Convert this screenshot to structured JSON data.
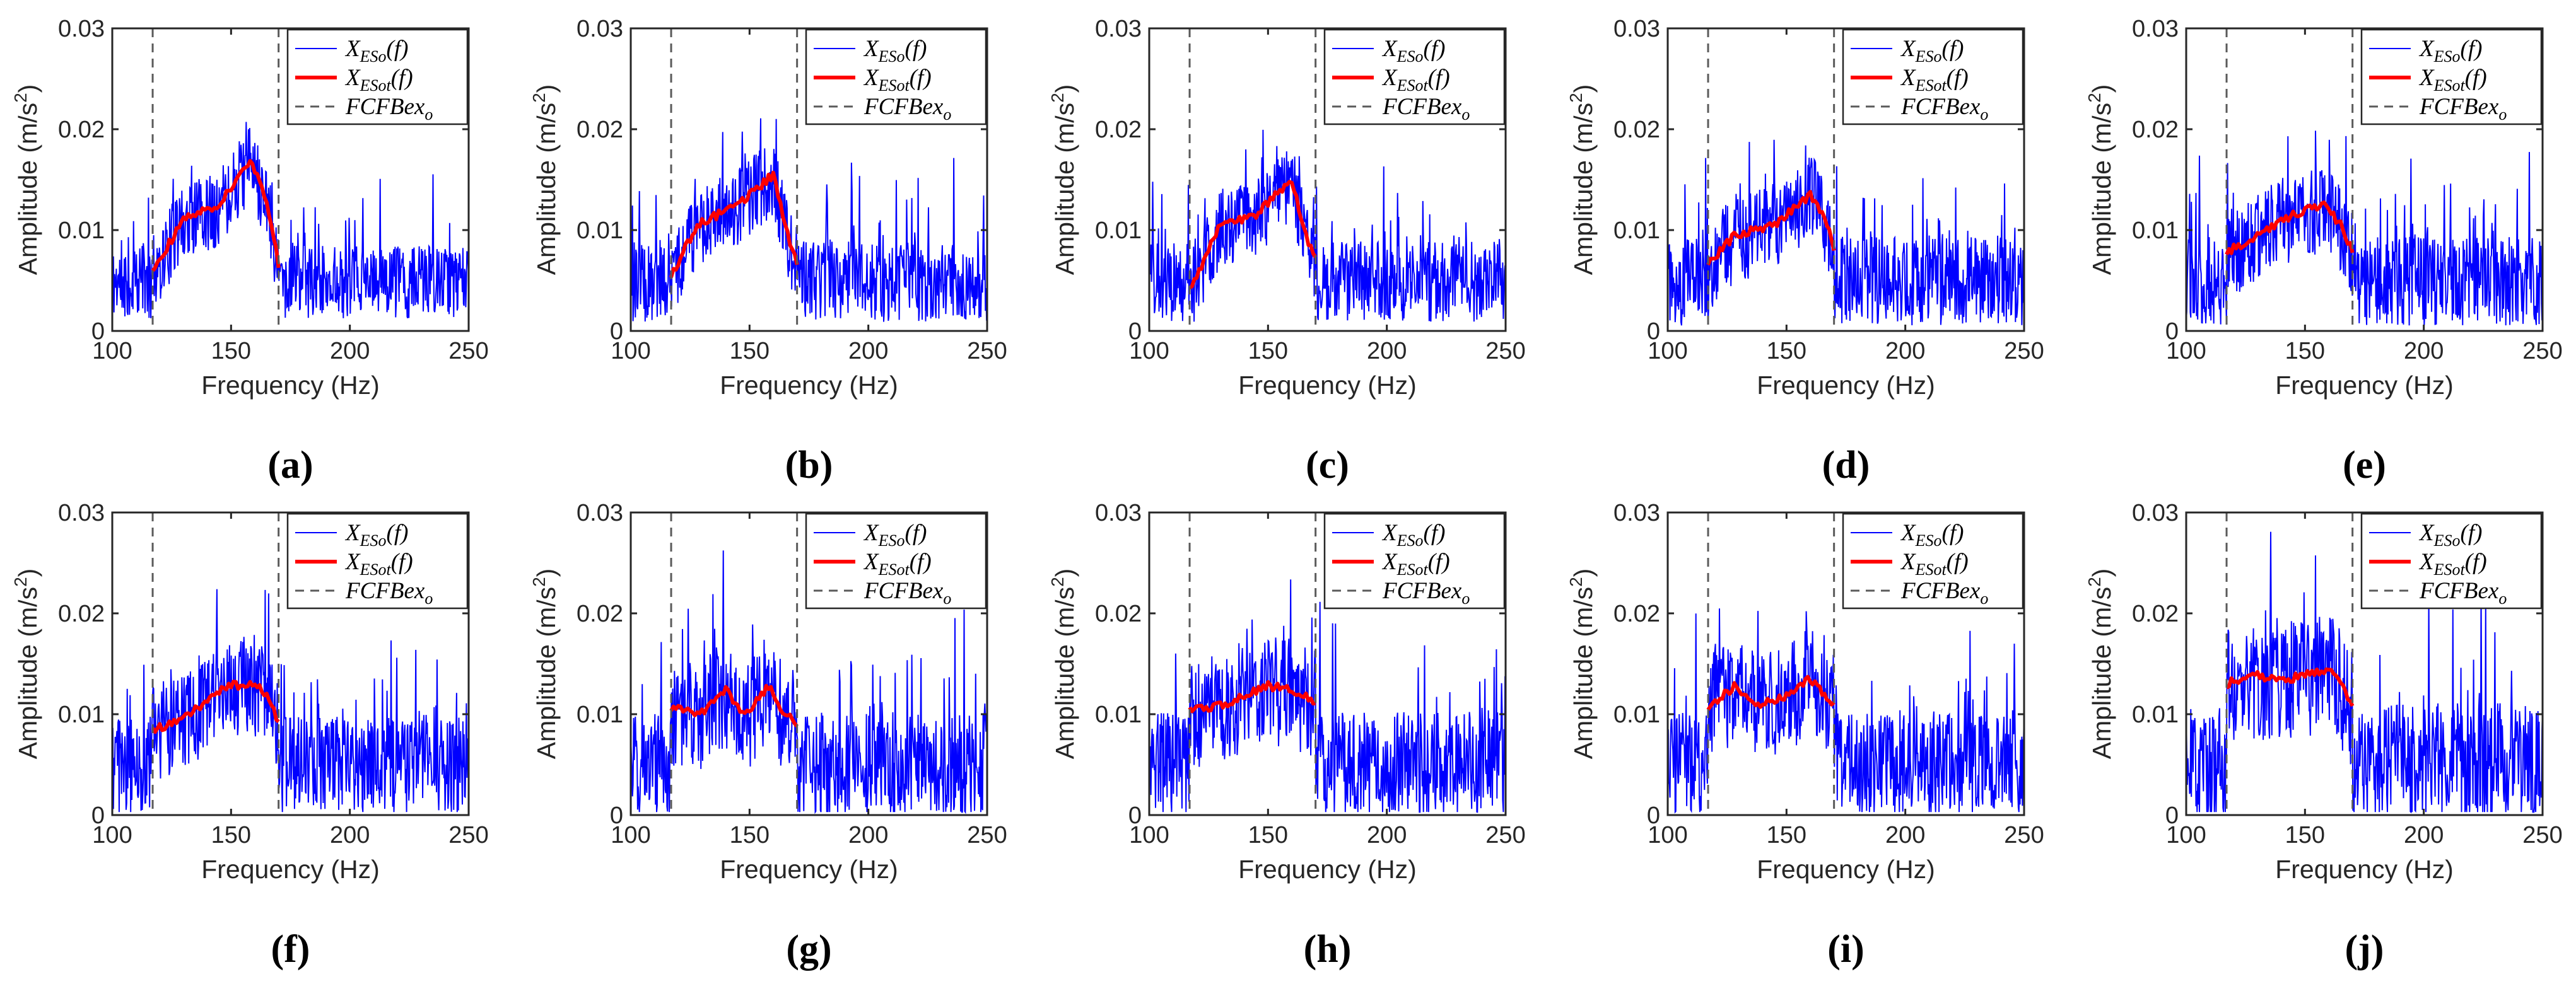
{
  "legend_entries": [
    {
      "base": "X",
      "sub": "ESo",
      "suffix": "(f)",
      "color": "#0000ff",
      "dash": "none",
      "stroke": 2
    },
    {
      "base": "X",
      "sub": "ESot",
      "suffix": "(f)",
      "color": "#ff0000",
      "dash": "none",
      "stroke": 6
    },
    {
      "base": "FCFBex",
      "sub": "o",
      "suffix": "",
      "color": "#5a5a5a",
      "dash": "14,10",
      "stroke": 3
    }
  ],
  "chart_data": [
    {
      "type": "line",
      "label": "(a)",
      "xlabel": "Frequency (Hz)",
      "ylabel": "Amplitude (m/s",
      "ylabel_sup": "2",
      "ylabel_end": ")",
      "xlim": [
        100,
        250
      ],
      "ylim": [
        0,
        0.03
      ],
      "xticks": [
        "100",
        "150",
        "200",
        "250"
      ],
      "yticks": [
        "0",
        "0.01",
        "0.02",
        "0.03"
      ],
      "band": [
        117,
        170
      ],
      "noise_seed": 11,
      "noise_out": 0.0045,
      "noise_in": 0.0035,
      "envelope": [
        [
          117,
          0.006
        ],
        [
          130,
          0.011
        ],
        [
          145,
          0.0125
        ],
        [
          158,
          0.017
        ],
        [
          165,
          0.013
        ],
        [
          170,
          0.0065
        ]
      ]
    },
    {
      "type": "line",
      "label": "(b)",
      "xlabel": "Frequency (Hz)",
      "ylabel": "Amplitude (m/s",
      "ylabel_sup": "2",
      "ylabel_end": ")",
      "xlim": [
        100,
        250
      ],
      "ylim": [
        0,
        0.03
      ],
      "xticks": [
        "100",
        "150",
        "200",
        "250"
      ],
      "yticks": [
        "0",
        "0.01",
        "0.02",
        "0.03"
      ],
      "band": [
        117,
        170
      ],
      "noise_seed": 23,
      "noise_out": 0.005,
      "noise_in": 0.0035,
      "envelope": [
        [
          117,
          0.0055
        ],
        [
          128,
          0.0105
        ],
        [
          145,
          0.0125
        ],
        [
          160,
          0.0155
        ],
        [
          166,
          0.0095
        ],
        [
          170,
          0.0065
        ]
      ]
    },
    {
      "type": "line",
      "label": "(c)",
      "xlabel": "Frequency (Hz)",
      "ylabel": "Amplitude (m/s",
      "ylabel_sup": "2",
      "ylabel_end": ")",
      "xlim": [
        100,
        250
      ],
      "ylim": [
        0,
        0.03
      ],
      "xticks": [
        "100",
        "150",
        "200",
        "250"
      ],
      "yticks": [
        "0",
        "0.01",
        "0.02",
        "0.03"
      ],
      "band": [
        117,
        170
      ],
      "noise_seed": 37,
      "noise_out": 0.005,
      "noise_in": 0.0035,
      "envelope": [
        [
          117,
          0.004
        ],
        [
          130,
          0.0105
        ],
        [
          145,
          0.0115
        ],
        [
          160,
          0.015
        ],
        [
          166,
          0.0095
        ],
        [
          170,
          0.007
        ]
      ]
    },
    {
      "type": "line",
      "label": "(d)",
      "xlabel": "Frequency (Hz)",
      "ylabel": "Amplitude (m/s",
      "ylabel_sup": "2",
      "ylabel_end": ")",
      "xlim": [
        100,
        250
      ],
      "ylim": [
        0,
        0.03
      ],
      "xticks": [
        "100",
        "150",
        "200",
        "250"
      ],
      "yticks": [
        "0",
        "0.01",
        "0.02",
        "0.03"
      ],
      "band": [
        117,
        170
      ],
      "noise_seed": 41,
      "noise_out": 0.0055,
      "noise_in": 0.004,
      "envelope": [
        [
          117,
          0.0065
        ],
        [
          128,
          0.0095
        ],
        [
          145,
          0.0105
        ],
        [
          160,
          0.0135
        ],
        [
          166,
          0.0115
        ],
        [
          170,
          0.008
        ]
      ]
    },
    {
      "type": "line",
      "label": "(e)",
      "xlabel": "Frequency (Hz)",
      "ylabel": "Amplitude (m/s",
      "ylabel_sup": "2",
      "ylabel_end": ")",
      "xlim": [
        100,
        250
      ],
      "ylim": [
        0,
        0.03
      ],
      "xticks": [
        "100",
        "150",
        "200",
        "250"
      ],
      "yticks": [
        "0",
        "0.01",
        "0.02",
        "0.03"
      ],
      "band": [
        117,
        170
      ],
      "noise_seed": 53,
      "noise_out": 0.0055,
      "noise_in": 0.004,
      "envelope": [
        [
          117,
          0.0078
        ],
        [
          130,
          0.0095
        ],
        [
          145,
          0.0115
        ],
        [
          158,
          0.0125
        ],
        [
          165,
          0.0105
        ],
        [
          170,
          0.008
        ]
      ]
    },
    {
      "type": "line",
      "label": "(f)",
      "xlabel": "Frequency (Hz)",
      "ylabel": "Amplitude (m/s",
      "ylabel_sup": "2",
      "ylabel_end": ")",
      "xlim": [
        100,
        250
      ],
      "ylim": [
        0,
        0.03
      ],
      "xticks": [
        "100",
        "150",
        "200",
        "250"
      ],
      "yticks": [
        "0",
        "0.01",
        "0.02",
        "0.03"
      ],
      "band": [
        117,
        170
      ],
      "noise_seed": 61,
      "noise_out": 0.006,
      "noise_in": 0.0045,
      "envelope": [
        [
          117,
          0.0085
        ],
        [
          130,
          0.0095
        ],
        [
          148,
          0.0128
        ],
        [
          160,
          0.013
        ],
        [
          166,
          0.0115
        ],
        [
          170,
          0.009
        ]
      ]
    },
    {
      "type": "line",
      "label": "(g)",
      "xlabel": "Frequency (Hz)",
      "ylabel": "Amplitude (m/s",
      "ylabel_sup": "2",
      "ylabel_end": ")",
      "xlim": [
        100,
        250
      ],
      "ylim": [
        0,
        0.03
      ],
      "xticks": [
        "100",
        "150",
        "200",
        "250"
      ],
      "yticks": [
        "0",
        "0.01",
        "0.02",
        "0.03"
      ],
      "band": [
        117,
        170
      ],
      "noise_seed": 71,
      "noise_out": 0.0065,
      "noise_in": 0.005,
      "envelope": [
        [
          117,
          0.0105
        ],
        [
          130,
          0.0102
        ],
        [
          140,
          0.0125
        ],
        [
          148,
          0.0098
        ],
        [
          158,
          0.0128
        ],
        [
          165,
          0.01
        ],
        [
          170,
          0.009
        ]
      ]
    },
    {
      "type": "line",
      "label": "(h)",
      "xlabel": "Frequency (Hz)",
      "ylabel": "Amplitude (m/s",
      "ylabel_sup": "2",
      "ylabel_end": ")",
      "xlim": [
        100,
        250
      ],
      "ylim": [
        0,
        0.03
      ],
      "xticks": [
        "100",
        "150",
        "200",
        "250"
      ],
      "yticks": [
        "0",
        "0.01",
        "0.02",
        "0.03"
      ],
      "band": [
        117,
        170
      ],
      "noise_seed": 83,
      "noise_out": 0.0065,
      "noise_in": 0.005,
      "envelope": [
        [
          117,
          0.0105
        ],
        [
          130,
          0.0108
        ],
        [
          140,
          0.0118
        ],
        [
          150,
          0.0128
        ],
        [
          160,
          0.0125
        ],
        [
          170,
          0.0112
        ]
      ]
    },
    {
      "type": "line",
      "label": "(i)",
      "xlabel": "Frequency (Hz)",
      "ylabel": "Amplitude (m/s",
      "ylabel_sup": "2",
      "ylabel_end": ")",
      "xlim": [
        100,
        250
      ],
      "ylim": [
        0,
        0.03
      ],
      "xticks": [
        "100",
        "150",
        "200",
        "250"
      ],
      "yticks": [
        "0",
        "0.01",
        "0.02",
        "0.03"
      ],
      "band": [
        117,
        170
      ],
      "noise_seed": 97,
      "noise_out": 0.0065,
      "noise_in": 0.005,
      "envelope": [
        [
          117,
          0.0105
        ],
        [
          128,
          0.0128
        ],
        [
          138,
          0.011
        ],
        [
          150,
          0.0118
        ],
        [
          160,
          0.0135
        ],
        [
          170,
          0.011
        ]
      ]
    },
    {
      "type": "line",
      "label": "(j)",
      "xlabel": "Frequency (Hz)",
      "ylabel": "Amplitude (m/s",
      "ylabel_sup": "2",
      "ylabel_end": ")",
      "xlim": [
        100,
        250
      ],
      "ylim": [
        0,
        0.03
      ],
      "xticks": [
        "100",
        "150",
        "200",
        "250"
      ],
      "yticks": [
        "0",
        "0.01",
        "0.02",
        "0.03"
      ],
      "band": [
        117,
        170
      ],
      "noise_seed": 109,
      "noise_out": 0.0075,
      "noise_in": 0.0055,
      "envelope": [
        [
          117,
          0.013
        ],
        [
          128,
          0.014
        ],
        [
          140,
          0.0132
        ],
        [
          150,
          0.014
        ],
        [
          160,
          0.0145
        ],
        [
          166,
          0.0125
        ],
        [
          170,
          0.0112
        ]
      ]
    }
  ]
}
